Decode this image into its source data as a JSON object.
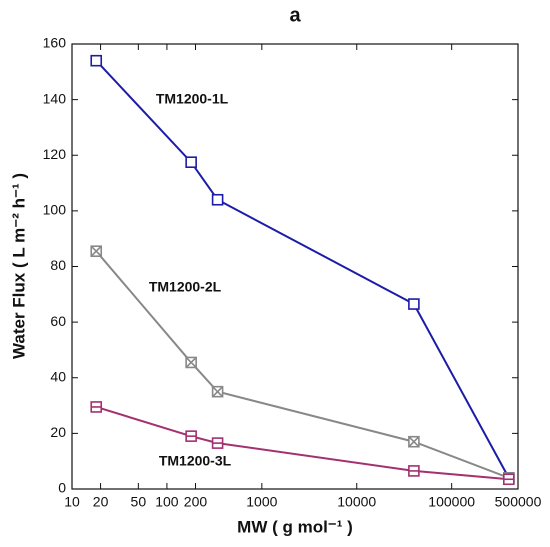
{
  "chart_data": {
    "type": "line",
    "title": "a",
    "xlabel": "MW ( g mol⁻¹ )",
    "ylabel": "Water Flux ( L m⁻² h⁻¹ )",
    "x": [
      18,
      180,
      342,
      40000,
      400000
    ],
    "xscale": "log",
    "xlim": [
      10,
      500000
    ],
    "xticks": [
      10,
      20,
      50,
      100,
      200,
      1000,
      10000,
      100000,
      500000
    ],
    "ylim": [
      0,
      160
    ],
    "yticks": [
      0,
      20,
      40,
      60,
      80,
      100,
      120,
      140,
      160
    ],
    "series": [
      {
        "name": "TM1200-1L",
        "color": "#1c1ca8",
        "marker": "square",
        "values": [
          154,
          117.5,
          104,
          66.5,
          4
        ]
      },
      {
        "name": "TM1200-2L",
        "color": "#888888",
        "marker": "square-x",
        "values": [
          85.5,
          45.5,
          35,
          17,
          4
        ]
      },
      {
        "name": "TM1200-3L",
        "color": "#a3306f",
        "marker": "square-bar",
        "values": [
          29.5,
          19,
          16.5,
          6.5,
          3.5
        ]
      }
    ]
  }
}
